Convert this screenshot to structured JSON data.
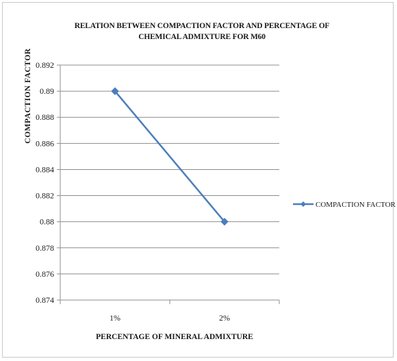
{
  "chart_data": {
    "type": "line",
    "title": "RELATION BETWEEN COMPACTION FACTOR AND PERCENTAGE OF CHEMICAL ADMIXTURE FOR M60",
    "xlabel": "PERCENTAGE OF MINERAL ADMIXTURE",
    "ylabel": "COMPACTION FACTOR",
    "categories": [
      "1%",
      "2%"
    ],
    "series": [
      {
        "name": "COMPACTION FACTOR",
        "values": [
          0.89,
          0.88
        ],
        "color": "#4a7ebb"
      }
    ],
    "ylim": [
      0.874,
      0.892
    ],
    "yticks": [
      "0.874",
      "0.876",
      "0.878",
      "0.88",
      "0.882",
      "0.884",
      "0.886",
      "0.888",
      "0.89",
      "0.892"
    ],
    "grid": true,
    "legend": "right"
  }
}
